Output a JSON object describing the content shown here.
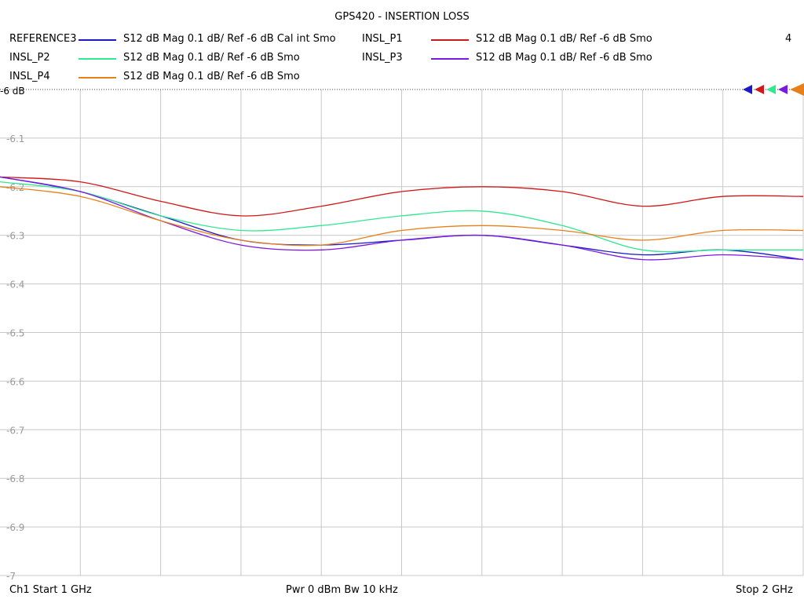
{
  "title": "GPS420 - INSERTION LOSS",
  "window_number": "4",
  "legend": [
    {
      "name": "REFERENCE3",
      "desc": "S12  dB Mag  0.1 dB/ Ref -6 dB  Cal int Smo",
      "color": "#1a1ac8"
    },
    {
      "name": "INSL_P1",
      "desc": "S12  dB Mag  0.1 dB/ Ref -6 dB  Smo",
      "color": "#d01818"
    },
    {
      "name": "INSL_P2",
      "desc": "S12  dB Mag  0.1 dB/ Ref -6 dB  Smo",
      "color": "#30e890"
    },
    {
      "name": "INSL_P3",
      "desc": "S12  dB Mag  0.1 dB/ Ref -6 dB  Smo",
      "color": "#7a1ae0"
    },
    {
      "name": "INSL_P4",
      "desc": "S12  dB Mag  0.1 dB/ Ref -6 dB  Smo",
      "color": "#e8801a"
    }
  ],
  "footer": {
    "left": "Ch1  Start  1 GHz",
    "center": "Pwr  0 dBm  Bw  10 kHz",
    "right": "Stop  2 GHz"
  },
  "chart_data": {
    "type": "line",
    "title": "GPS420 - INSERTION LOSS",
    "xlabel": "",
    "ylabel": "",
    "x_unit": "GHz",
    "xlim": [
      1,
      2
    ],
    "ylim": [
      -7,
      -6
    ],
    "grid": true,
    "x_divisions": 10,
    "y_ticks": [
      -6,
      -6.1,
      -6.2,
      -6.3,
      -6.4,
      -6.5,
      -6.6,
      -6.7,
      -6.8,
      -6.9,
      -7
    ],
    "y_tick_labels": [
      "-6 dB",
      "-6.1",
      "-6.2",
      "-6.3",
      "-6.4",
      "-6.5",
      "-6.6",
      "-6.7",
      "-6.8",
      "-6.9",
      "-7"
    ],
    "x": [
      1.0,
      1.1,
      1.2,
      1.3,
      1.4,
      1.5,
      1.6,
      1.7,
      1.8,
      1.9,
      2.0
    ],
    "series": [
      {
        "name": "REFERENCE3",
        "color": "#1a1ac8",
        "values": [
          -6.18,
          -6.21,
          -6.26,
          -6.31,
          -6.32,
          -6.31,
          -6.3,
          -6.32,
          -6.34,
          -6.33,
          -6.35
        ]
      },
      {
        "name": "INSL_P1",
        "color": "#d01818",
        "values": [
          -6.18,
          -6.19,
          -6.23,
          -6.26,
          -6.24,
          -6.21,
          -6.2,
          -6.21,
          -6.24,
          -6.22,
          -6.22
        ]
      },
      {
        "name": "INSL_P2",
        "color": "#30e890",
        "values": [
          -6.19,
          -6.21,
          -6.26,
          -6.29,
          -6.28,
          -6.26,
          -6.25,
          -6.28,
          -6.33,
          -6.33,
          -6.33
        ]
      },
      {
        "name": "INSL_P3",
        "color": "#7a1ae0",
        "values": [
          -6.18,
          -6.21,
          -6.27,
          -6.32,
          -6.33,
          -6.31,
          -6.3,
          -6.32,
          -6.35,
          -6.34,
          -6.35
        ]
      },
      {
        "name": "INSL_P4",
        "color": "#e8801a",
        "values": [
          -6.2,
          -6.22,
          -6.27,
          -6.31,
          -6.32,
          -6.29,
          -6.28,
          -6.29,
          -6.31,
          -6.29,
          -6.29
        ]
      }
    ],
    "marker_order": [
      "REFERENCE3",
      "INSL_P1",
      "INSL_P2",
      "INSL_P3",
      "INSL_P4"
    ]
  }
}
